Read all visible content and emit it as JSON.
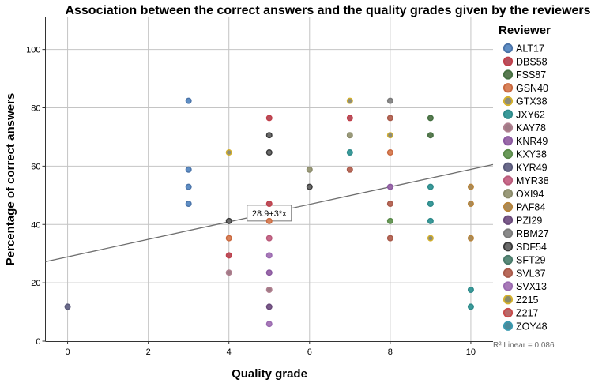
{
  "chart_data": {
    "type": "scatter",
    "title": "Association between the correct answers and the quality grades given by the reviewers",
    "xlabel": "Quality grade",
    "ylabel": "Percentage of correct answers",
    "xlim": [
      -0.55,
      10.55
    ],
    "ylim": [
      0,
      111
    ],
    "x_ticks": [
      0,
      2,
      4,
      6,
      8,
      10
    ],
    "y_ticks": [
      0,
      20,
      40,
      60,
      80,
      100
    ],
    "grid": true,
    "legend_title": "Reviewer",
    "legend_placement": "right",
    "fit_line": {
      "intercept": 28.9,
      "slope": 3,
      "label": "28.9+3*x",
      "label_x": 5,
      "r2_text": "R² Linear = 0.086"
    },
    "series": [
      {
        "name": "ALT17",
        "face": "#5f8ec4",
        "edge": "#4a73a8",
        "points": [
          [
            3,
            82.4
          ],
          [
            3,
            58.8
          ],
          [
            3,
            52.9
          ],
          [
            3,
            47.1
          ]
        ]
      },
      {
        "name": "DBS58",
        "face": "#b8505d",
        "edge": "#c03f4a",
        "points": [
          [
            5,
            76.5
          ],
          [
            5,
            47.1
          ],
          [
            4,
            29.4
          ],
          [
            7,
            76.5
          ]
        ]
      },
      {
        "name": "FSS87",
        "face": "#5a7a52",
        "edge": "#447040",
        "points": [
          [
            9,
            76.5
          ],
          [
            9,
            70.6
          ]
        ]
      },
      {
        "name": "GSN40",
        "face": "#d8825a",
        "edge": "#c9683e",
        "points": [
          [
            4,
            35.3
          ],
          [
            5,
            41.2
          ],
          [
            8,
            64.7
          ]
        ]
      },
      {
        "name": "GTX38",
        "face": "#8c8c7a",
        "edge": "#d4b02b",
        "points": [
          [
            4,
            64.7
          ],
          [
            7,
            82.4
          ],
          [
            8,
            70.6
          ],
          [
            9,
            35.3
          ]
        ]
      },
      {
        "name": "JXY62",
        "face": "#3a9a9a",
        "edge": "#2e8a8a",
        "points": [
          [
            7,
            64.7
          ],
          [
            9,
            52.9
          ],
          [
            9,
            47.1
          ],
          [
            9,
            41.2
          ],
          [
            10,
            17.6
          ],
          [
            10,
            11.8
          ]
        ]
      },
      {
        "name": "KAY78",
        "face": "#a07a86",
        "edge": "#b08090",
        "points": [
          [
            4,
            23.5
          ],
          [
            5,
            17.6
          ]
        ]
      },
      {
        "name": "KNR49",
        "face": "#9a6aa8",
        "edge": "#8a58a0",
        "points": [
          [
            5,
            23.5
          ],
          [
            8,
            52.9
          ]
        ]
      },
      {
        "name": "KXY38",
        "face": "#6a9a5a",
        "edge": "#5a8a4a",
        "points": [
          [
            8,
            41.2
          ]
        ]
      },
      {
        "name": "KYR49",
        "face": "#6a6a8a",
        "edge": "#5a5a7a",
        "points": [
          [
            0,
            11.8
          ]
        ]
      },
      {
        "name": "MYR38",
        "face": "#c86a8a",
        "edge": "#b85a7a",
        "points": [
          [
            5,
            35.3
          ]
        ]
      },
      {
        "name": "OXI94",
        "face": "#9a9a7a",
        "edge": "#8a8a6a",
        "points": [
          [
            6,
            58.8
          ],
          [
            7,
            70.6
          ]
        ]
      },
      {
        "name": "PAF84",
        "face": "#a88a5a",
        "edge": "#b8843a",
        "points": [
          [
            10,
            52.9
          ],
          [
            10,
            47.1
          ],
          [
            10,
            35.3
          ]
        ]
      },
      {
        "name": "PZI29",
        "face": "#7a5a8a",
        "edge": "#6a4a7a",
        "points": [
          [
            5,
            11.8
          ]
        ]
      },
      {
        "name": "RBM27",
        "face": "#8a8a8a",
        "edge": "#7a7a7a",
        "points": [
          [
            8,
            82.4
          ]
        ]
      },
      {
        "name": "SDF54",
        "face": "#6a6a6a",
        "edge": "#3a3a3a",
        "points": [
          [
            5,
            70.6
          ],
          [
            5,
            64.7
          ],
          [
            6,
            52.9
          ],
          [
            4,
            41.2
          ]
        ]
      },
      {
        "name": "SFT29",
        "face": "#5a8a7a",
        "edge": "#4a7a6a",
        "points": []
      },
      {
        "name": "SVL37",
        "face": "#b86a5a",
        "edge": "#a85a4a",
        "points": [
          [
            7,
            58.8
          ],
          [
            8,
            76.5
          ],
          [
            8,
            47.1
          ],
          [
            8,
            35.3
          ]
        ]
      },
      {
        "name": "SVX13",
        "face": "#a87ab8",
        "edge": "#9a6ab0",
        "points": [
          [
            5,
            29.4
          ],
          [
            5,
            5.9
          ]
        ]
      },
      {
        "name": "Z215",
        "face": "#8a8a6a",
        "edge": "#d4b02b",
        "points": []
      },
      {
        "name": "Z217",
        "face": "#b86a6a",
        "edge": "#c84a4a",
        "points": []
      },
      {
        "name": "ZOY48",
        "face": "#4a8a9a",
        "edge": "#3a9ab0",
        "points": []
      }
    ]
  }
}
